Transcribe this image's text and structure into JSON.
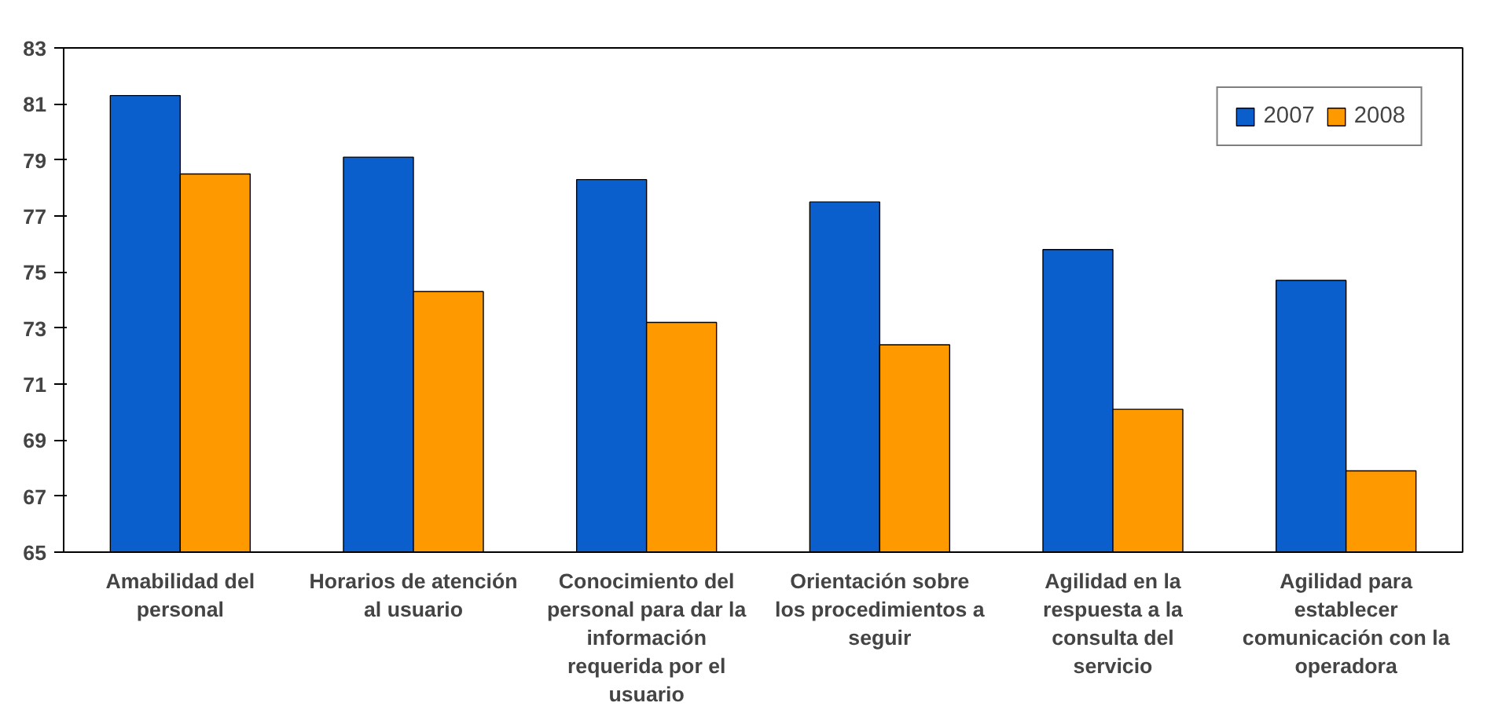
{
  "chart_data": {
    "type": "bar",
    "categories": [
      "Amabilidad del personal",
      "Horarios de atención al usuario",
      "Conocimiento del personal para dar la información requerida por el usuario",
      "Orientación sobre los procedimientos a seguir",
      "Agilidad en la respuesta a la consulta del servicio",
      "Agilidad para establecer comunicación con la operadora"
    ],
    "series": [
      {
        "name": "2007",
        "color": "#0a5fcc",
        "values": [
          81.3,
          79.1,
          78.3,
          77.5,
          75.8,
          74.7
        ]
      },
      {
        "name": "2008",
        "color": "#ff9900",
        "values": [
          78.5,
          74.3,
          73.2,
          72.4,
          70.1,
          67.9
        ]
      }
    ],
    "ylim": [
      65,
      83
    ],
    "yticks": [
      65,
      67,
      69,
      71,
      73,
      75,
      77,
      79,
      81,
      83
    ],
    "grid": false,
    "legend": "top right"
  }
}
